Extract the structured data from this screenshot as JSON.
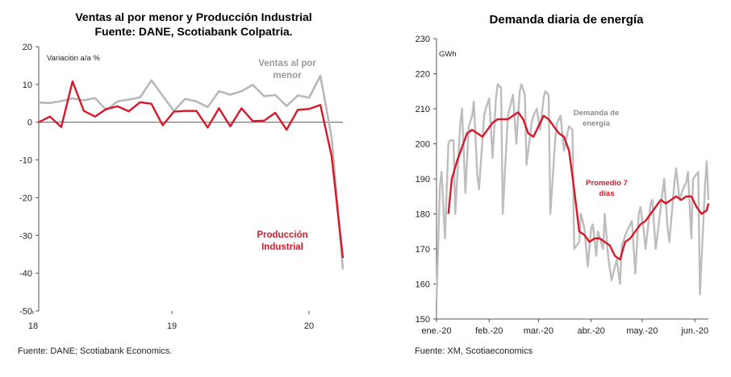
{
  "chart_data": [
    {
      "type": "line",
      "title_line1": "Ventas al por menor y Producción Industrial",
      "title_line2": "Fuente: DANE, Scotiabank Colpatria.",
      "ylabel": "Variación a/a %",
      "ylim": [
        -50,
        20
      ],
      "yticks": [
        "20",
        "10",
        "0",
        "-10",
        "-20",
        "-30",
        "-40",
        "-50"
      ],
      "xticks": [
        "18",
        "19",
        "20"
      ],
      "x_range": [
        0,
        27
      ],
      "source": "Fuente: DANE; Scotiabank Economics.",
      "series": [
        {
          "name": "Ventas al por menor",
          "label_line1": "Ventas al por",
          "label_line2": "menor",
          "color": "#b8b8b8",
          "x": [
            0,
            1,
            2,
            3,
            4,
            5,
            6,
            7,
            8,
            9,
            10,
            11,
            12,
            13,
            14,
            15,
            16,
            17,
            18,
            19,
            20,
            21,
            22,
            23,
            24,
            25,
            26,
            27
          ],
          "values": [
            5.2,
            5.1,
            5.6,
            6.3,
            5.8,
            6.4,
            3.2,
            5.5,
            6.0,
            6.6,
            11.1,
            7.0,
            3.0,
            6.2,
            5.5,
            4.0,
            8.2,
            7.3,
            8.2,
            9.9,
            6.9,
            7.2,
            4.3,
            7.1,
            6.5,
            12.3,
            -4.0,
            -39.0
          ]
        },
        {
          "name": "Producción Industrial",
          "label_line1": "Producción",
          "label_line2": "Industrial",
          "color": "#d7182a",
          "x": [
            0,
            1,
            2,
            3,
            4,
            5,
            6,
            7,
            8,
            9,
            10,
            11,
            12,
            13,
            14,
            15,
            16,
            17,
            18,
            19,
            20,
            21,
            22,
            23,
            24,
            25,
            26,
            27
          ],
          "values": [
            0.0,
            1.5,
            -1.3,
            10.8,
            3.0,
            1.5,
            3.5,
            4.2,
            2.9,
            5.3,
            4.9,
            -0.8,
            2.8,
            3.0,
            3.0,
            -1.4,
            3.7,
            -1.1,
            3.7,
            0.3,
            0.4,
            2.5,
            -2.0,
            3.3,
            3.5,
            4.6,
            -9.0,
            -36.0
          ]
        }
      ]
    },
    {
      "type": "line",
      "title": "Demanda diaria de energía",
      "ylabel": "GWh",
      "ylim": [
        150,
        230
      ],
      "yticks": [
        "230",
        "220",
        "210",
        "200",
        "190",
        "180",
        "170",
        "160",
        "150"
      ],
      "xticks": [
        "ene.-20",
        "feb.-20",
        "mar.-20",
        "abr.-20",
        "may.-20",
        "jun.-20"
      ],
      "x_range": [
        0,
        160
      ],
      "source": "Fuente: XM, Scotiaeconomics",
      "series": [
        {
          "name": "Demanda de energía",
          "label_line1": "Demanda de",
          "label_line2": "energía",
          "color": "#bdbdbd",
          "x": [
            0,
            2,
            3,
            5,
            7,
            8,
            10,
            11,
            14,
            15,
            17,
            19,
            21,
            22,
            24,
            25,
            28,
            29,
            31,
            33,
            35,
            36,
            38,
            39,
            42,
            43,
            45,
            47,
            49,
            50,
            52,
            53,
            56,
            57,
            59,
            61,
            63,
            64,
            66,
            67,
            70,
            71,
            73,
            75,
            77,
            78,
            80,
            81,
            84,
            85,
            87,
            89,
            91,
            92,
            94,
            95,
            98,
            99,
            101,
            103,
            105,
            106,
            108,
            109,
            112,
            113,
            115,
            117,
            119,
            120,
            122,
            123,
            126,
            127,
            129,
            131,
            133,
            134,
            136,
            137,
            140,
            141,
            143,
            145,
            147,
            148,
            150,
            151,
            154,
            155,
            158,
            159,
            160
          ],
          "values": [
            155,
            188,
            192,
            173,
            200,
            201,
            201,
            180,
            206,
            210,
            186,
            205,
            208,
            212,
            191,
            187,
            208,
            210,
            213,
            196,
            213,
            217,
            216,
            180,
            208,
            210,
            214,
            200,
            215,
            217,
            214,
            194,
            206,
            208,
            210,
            204,
            213,
            215,
            214,
            180,
            202,
            206,
            208,
            198,
            203,
            205,
            204,
            170,
            172,
            180,
            176,
            165,
            176,
            177,
            168,
            175,
            170,
            180,
            168,
            161,
            165,
            167,
            160,
            171,
            175,
            176,
            178,
            163,
            180,
            182,
            175,
            170,
            183,
            184,
            170,
            178,
            186,
            190,
            176,
            172,
            189,
            193,
            184,
            187,
            189,
            192,
            173,
            190,
            192,
            157,
            188,
            195,
            184
          ]
        },
        {
          "name": "Promedio 7 días",
          "label_line1": "Promedio 7",
          "label_line2": "días",
          "color": "#d7182a",
          "x": [
            7,
            9,
            12,
            15,
            18,
            21,
            24,
            27,
            30,
            33,
            36,
            39,
            42,
            45,
            48,
            51,
            54,
            57,
            60,
            63,
            66,
            69,
            72,
            75,
            78,
            81,
            84,
            87,
            90,
            93,
            96,
            99,
            102,
            105,
            108,
            111,
            114,
            117,
            120,
            123,
            126,
            129,
            132,
            135,
            138,
            141,
            144,
            147,
            150,
            153,
            156,
            159,
            160
          ],
          "values": [
            180,
            190,
            195,
            199,
            203,
            204,
            203,
            202,
            204,
            206,
            207,
            207,
            207,
            208,
            209,
            207,
            203,
            202,
            205,
            208,
            207,
            205,
            203,
            202,
            198,
            187,
            175,
            174,
            172,
            173,
            173,
            172,
            171,
            168,
            167,
            172,
            173,
            175,
            177,
            178,
            180,
            182,
            184,
            183,
            184,
            185,
            184,
            185,
            185,
            182,
            180,
            181,
            183
          ]
        }
      ]
    }
  ]
}
